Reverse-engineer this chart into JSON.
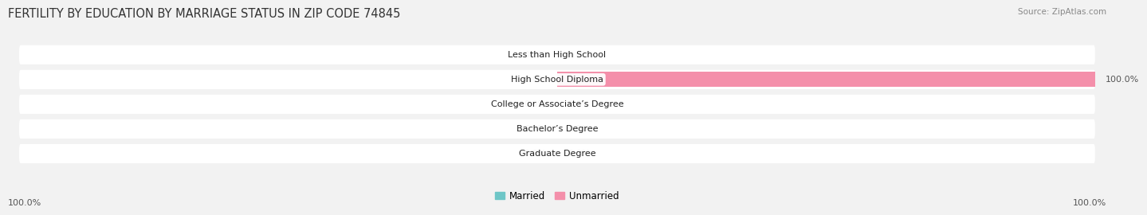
{
  "title": "FERTILITY BY EDUCATION BY MARRIAGE STATUS IN ZIP CODE 74845",
  "source": "Source: ZipAtlas.com",
  "categories": [
    "Less than High School",
    "High School Diploma",
    "College or Associate’s Degree",
    "Bachelor’s Degree",
    "Graduate Degree"
  ],
  "married_values": [
    0.0,
    0.0,
    0.0,
    0.0,
    0.0
  ],
  "unmarried_values": [
    0.0,
    100.0,
    0.0,
    0.0,
    0.0
  ],
  "married_color": "#6ec6c7",
  "unmarried_color": "#f48faa",
  "row_bg_color": "#ffffff",
  "fig_bg_color": "#f2f2f2",
  "title_fontsize": 10.5,
  "label_fontsize": 8.0,
  "category_fontsize": 8.0,
  "source_fontsize": 7.5,
  "bar_height": 0.62,
  "xlim_left": -100,
  "xlim_right": 100,
  "bottom_left_label": "100.0%",
  "bottom_right_label": "100.0%"
}
